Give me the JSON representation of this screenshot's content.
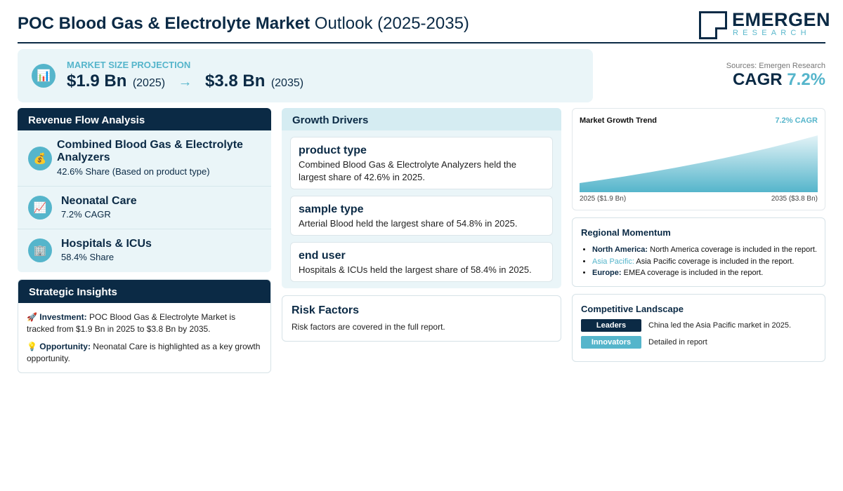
{
  "header": {
    "title_bold": "POC Blood Gas & Electrolyte Market",
    "title_light": "Outlook (2025-2035)",
    "logo_word": "EMERGEN",
    "logo_sub": "RESEARCH"
  },
  "projection": {
    "label": "MARKET SIZE PROJECTION",
    "start_value": "$1.9 Bn",
    "start_year": "(2025)",
    "arrow": "→",
    "end_value": "$3.8 Bn",
    "end_year": "(2035)",
    "icon": "bar-chart-icon"
  },
  "sources": "Sources: Emergen Research",
  "cagr": {
    "label": "CAGR",
    "value": "7.2%"
  },
  "revenue_flow": {
    "heading": "Revenue Flow Analysis",
    "items": [
      {
        "icon": "money-bag-icon",
        "glyph": "💰",
        "title": "Combined Blood Gas & Electrolyte Analyzers",
        "sub": "42.6% Share (Based on product type)"
      },
      {
        "icon": "trend-chart-icon",
        "glyph": "📈",
        "title": "Neonatal Care",
        "sub": "7.2% CAGR"
      },
      {
        "icon": "building-icon",
        "glyph": "🏢",
        "title": "Hospitals & ICUs",
        "sub": "58.4% Share"
      }
    ]
  },
  "strategic": {
    "heading": "Strategic Insights",
    "investment_label": "Investment:",
    "investment_text": "POC Blood Gas & Electrolyte Market is tracked from $1.9 Bn in 2025 to $3.8 Bn by 2035.",
    "opportunity_label": "Opportunity:",
    "opportunity_text": "Neonatal Care is highlighted as a key growth opportunity.",
    "investment_glyph": "🚀",
    "opportunity_glyph": "💡"
  },
  "drivers": {
    "heading": "Growth Drivers",
    "items": [
      {
        "title": "product type",
        "text": "Combined Blood Gas & Electrolyte Analyzers held the largest share of 42.6% in 2025."
      },
      {
        "title": "sample type",
        "text": "Arterial Blood held the largest share of 54.8% in 2025."
      },
      {
        "title": "end user",
        "text": "Hospitals & ICUs held the largest share of 58.4% in 2025."
      }
    ]
  },
  "risk": {
    "title": "Risk Factors",
    "text": "Risk factors are covered in the full report."
  },
  "trend": {
    "title": "Market Growth Trend",
    "cagr": "7.2% CAGR",
    "start_label": "2025 ($1.9 Bn)",
    "end_label": "2035 ($3.8 Bn)",
    "fill_top": "#55b5cb",
    "fill_bottom": "#e3f3f7"
  },
  "chart_data": {
    "type": "area",
    "x": [
      "2025",
      "2035"
    ],
    "series": [
      {
        "values": [
          1.9,
          3.8
        ]
      }
    ]
  },
  "regional": {
    "title": "Regional Momentum",
    "items": [
      {
        "name": "North America:",
        "text": "North America coverage is included in the report."
      },
      {
        "name": "Asia Pacific:",
        "text": "Asia Pacific coverage is included in the report."
      },
      {
        "name": "Europe:",
        "text": "EMEA coverage is included in the report."
      }
    ]
  },
  "competitive": {
    "title": "Competitive Landscape",
    "leaders_label": "Leaders",
    "leaders_text": "China led the Asia Pacific market in 2025.",
    "innovators_label": "Innovators",
    "innovators_text": "Detailed in report"
  },
  "colors": {
    "navy": "#0b2a45",
    "accent": "#55b5cb",
    "panel_bg": "#eaf5f8"
  }
}
